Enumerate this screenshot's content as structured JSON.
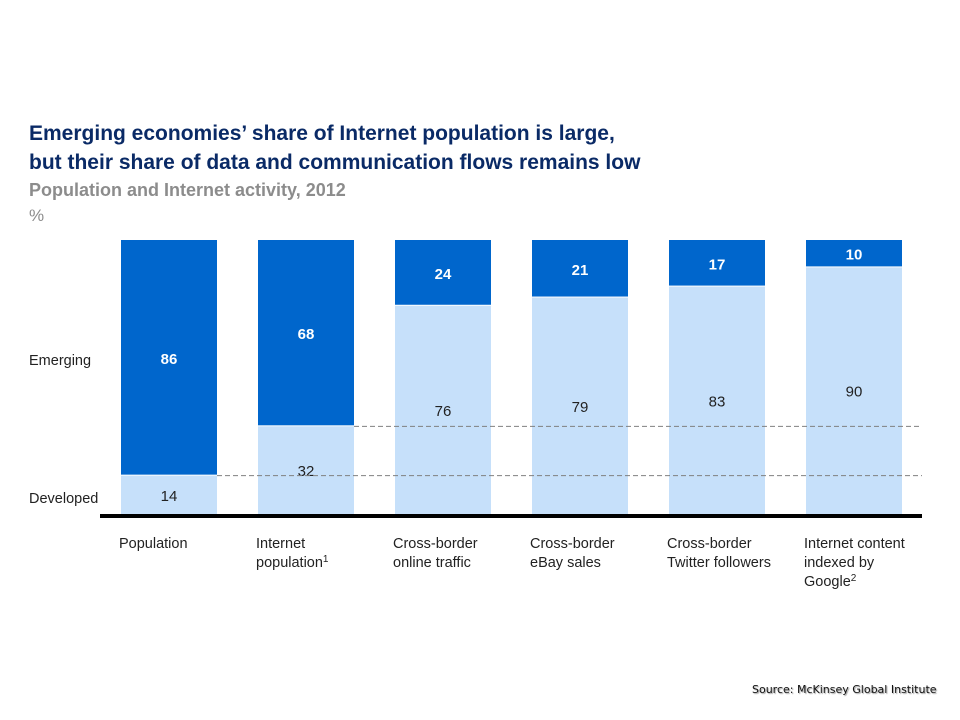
{
  "chart_data": {
    "type": "bar",
    "stacked": true,
    "title": "Emerging economies’ share of Internet population is large, but their share of data and communication flows remains low",
    "title_lines": [
      "Emerging economies’ share of Internet population is large,",
      "but their share of data and communication flows remains low"
    ],
    "subtitle": "Population and Internet activity, 2012",
    "unit": "%",
    "ylim": [
      0,
      100
    ],
    "categories": [
      {
        "lines": [
          "Population"
        ],
        "sup": ""
      },
      {
        "lines": [
          "Internet",
          "population"
        ],
        "sup": "1"
      },
      {
        "lines": [
          "Cross-border",
          "online traffic"
        ],
        "sup": ""
      },
      {
        "lines": [
          "Cross-border",
          "eBay sales"
        ],
        "sup": ""
      },
      {
        "lines": [
          "Cross-border",
          "Twitter followers"
        ],
        "sup": ""
      },
      {
        "lines": [
          "Internet content",
          "indexed by",
          "Google"
        ],
        "sup": "2"
      }
    ],
    "series": [
      {
        "name": "Developed",
        "color": "#c6e0fa",
        "label_color": "#222222",
        "values": [
          14,
          32,
          76,
          79,
          83,
          90
        ]
      },
      {
        "name": "Emerging",
        "color": "#0066cc",
        "label_color": "#ffffff",
        "values": [
          86,
          68,
          24,
          21,
          17,
          10
        ]
      }
    ],
    "reference_lines": [
      14,
      32
    ],
    "grid": false
  },
  "source": "Source: McKinsey Global Institute"
}
